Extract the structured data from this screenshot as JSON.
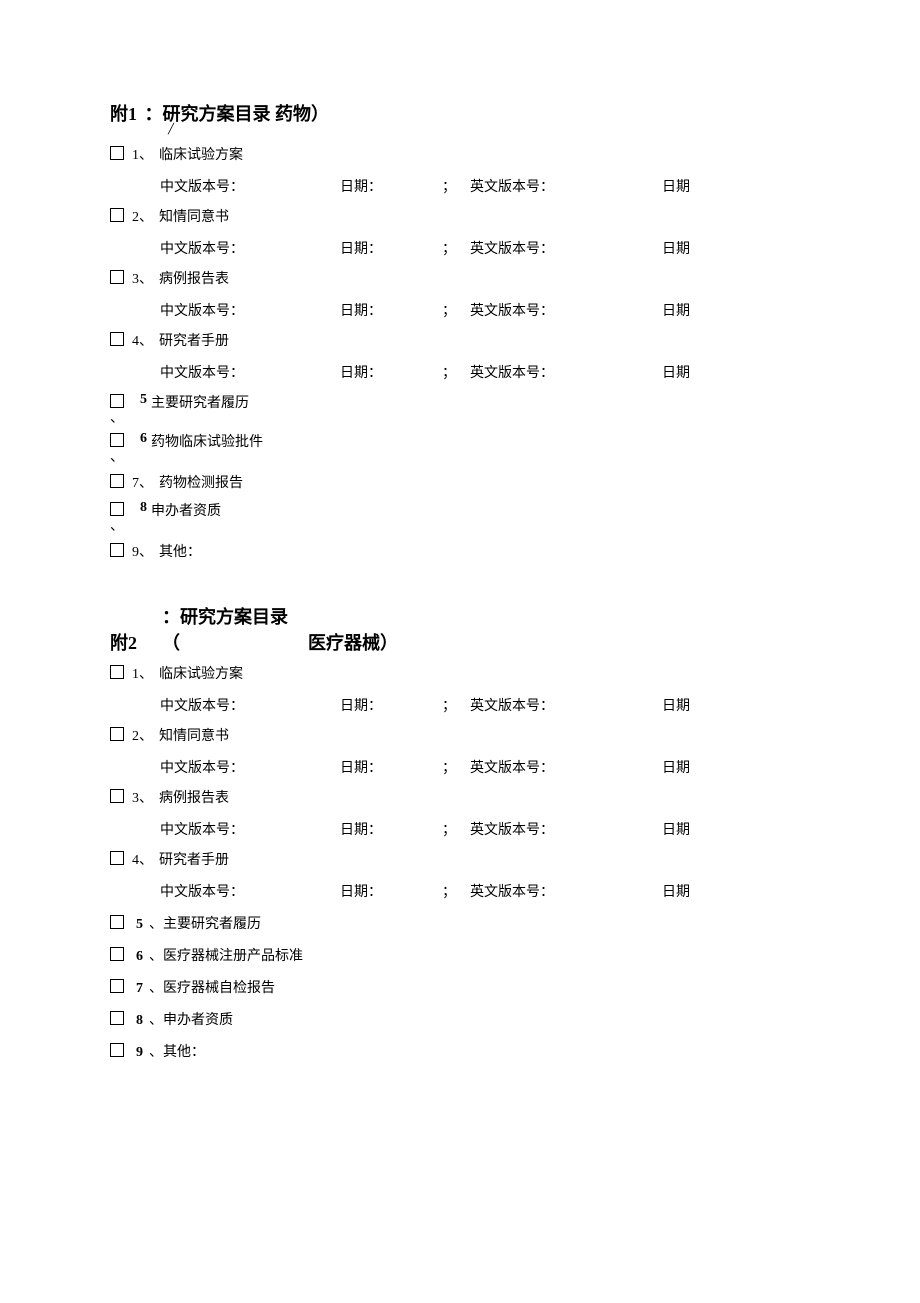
{
  "section1": {
    "prefix": "附1",
    "title_rest": "：研究方案目录  药物）",
    "slash": "╱",
    "items": [
      {
        "num": "1、",
        "label": "临床试验方案",
        "has_version": true
      },
      {
        "num": "2、",
        "label": "知情同意书",
        "has_version": true
      },
      {
        "num": "3、",
        "label": "病例报告表",
        "has_version": true
      },
      {
        "num": "4、",
        "label": "研究者手册",
        "has_version": true
      }
    ],
    "offset_items": [
      {
        "num": "5",
        "label": "主要研究者履历"
      },
      {
        "num": "6",
        "label": "药物临床试验批件"
      }
    ],
    "item7": {
      "num": "7、",
      "label": "药物检测报告"
    },
    "offset_item8": {
      "num": "8",
      "label": "申办者资质"
    },
    "item9": {
      "num": "9、",
      "label": "其他："
    },
    "version_labels": {
      "cn": "中文版本号：",
      "date": "日期：",
      "sep": "；",
      "en": "英文版本号：",
      "date2": "日期"
    }
  },
  "section2": {
    "prefix": "附2",
    "title_line1": "：研究方案目录",
    "title_paren": "（",
    "title_line2": "医疗器械）",
    "items": [
      {
        "num": "1、",
        "label": "临床试验方案",
        "has_version": true
      },
      {
        "num": "2、",
        "label": "知情同意书",
        "has_version": true
      },
      {
        "num": "3、",
        "label": "病例报告表",
        "has_version": true
      },
      {
        "num": "4、",
        "label": "研究者手册",
        "has_version": true
      }
    ],
    "simple_items": [
      {
        "num": "5",
        "label": "、主要研究者履历"
      },
      {
        "num": "6",
        "label": "、医疗器械注册产品标准"
      },
      {
        "num": "7",
        "label": "、医疗器械自检报告"
      },
      {
        "num": "8",
        "label": "、申办者资质"
      },
      {
        "num": "9",
        "label": "、其他："
      }
    ]
  }
}
